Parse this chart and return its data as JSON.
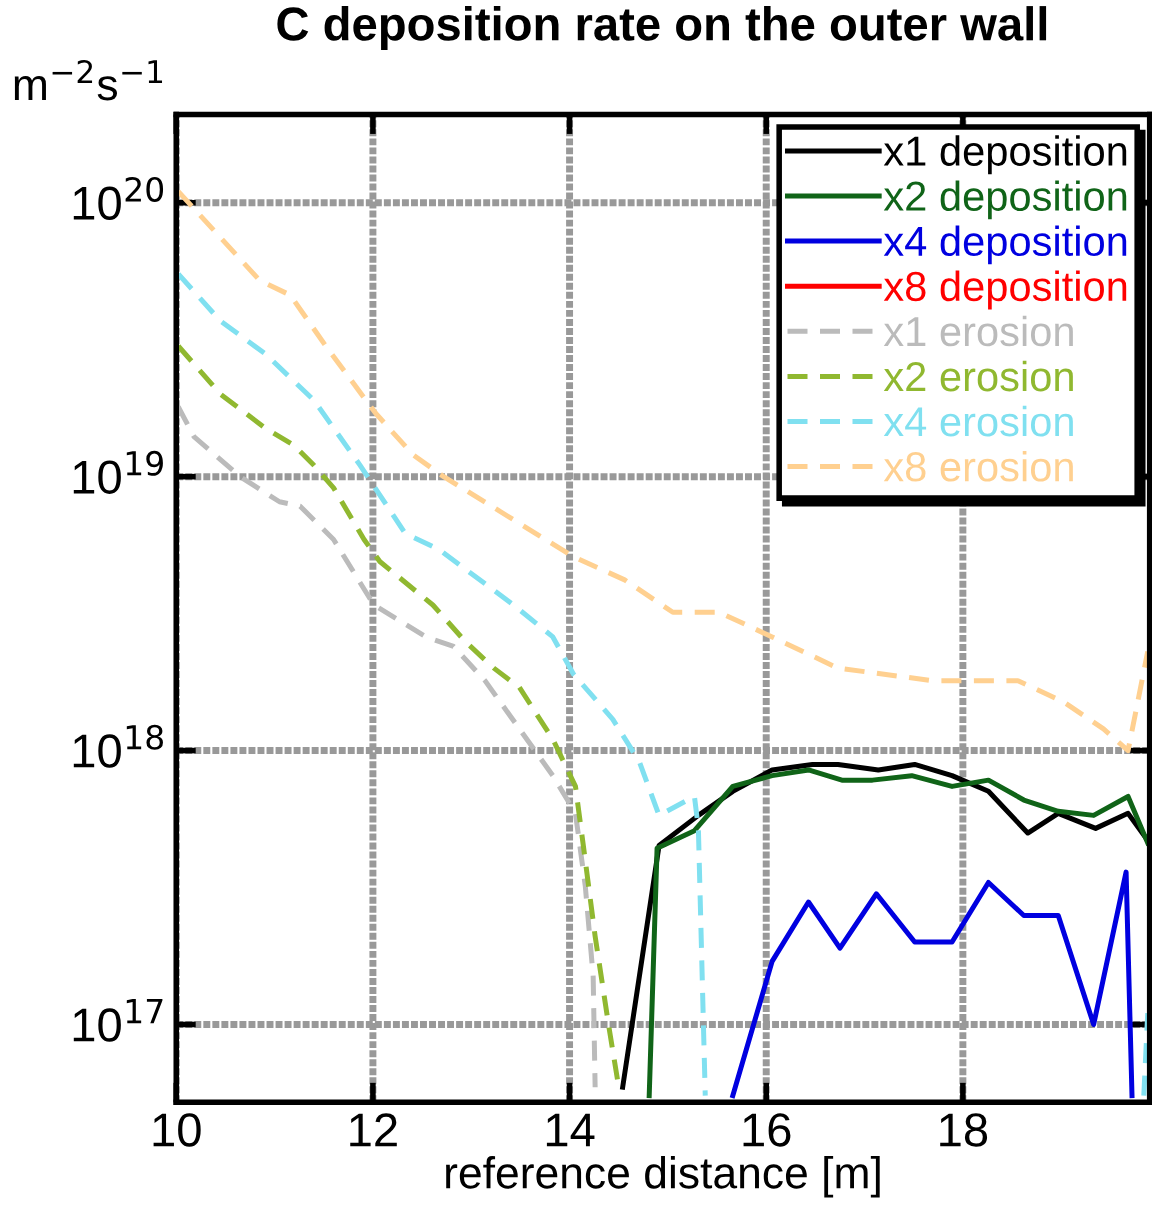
{
  "chart_data": {
    "type": "line",
    "title": "C deposition rate on the outer wall",
    "ylabel": "m$^{−2}$s$^{−1}$",
    "xlabel": "reference distance [m]",
    "log": "y",
    "grid": true,
    "legend": "top right",
    "xlim": [
      10,
      19.9
    ],
    "xticks": [
      10,
      12,
      14,
      16,
      18
    ],
    "ylim": [
      5.2e+16,
      2.1e+20
    ],
    "yticks": [
      {
        "value": 1e+17,
        "label": "10$^{17}$"
      },
      {
        "value": 1e+18,
        "label": "10$^{18}$"
      },
      {
        "value": 1e+19,
        "label": "10$^{19}$"
      },
      {
        "value": 1e+20,
        "label": "10$^{20}$"
      }
    ],
    "series": [
      {
        "name": "x1 deposition",
        "color": "#000000",
        "line_style": "solid",
        "x": [
          14.54,
          14.91,
          15.31,
          15.66,
          16.06,
          16.47,
          16.73,
          17.14,
          17.51,
          17.89,
          18.26,
          18.66,
          18.97,
          19.35,
          19.68,
          19.88
        ],
        "values": [
          5.9e+16,
          4.5e+17,
          5.8e+17,
          7.1e+17,
          8.5e+17,
          8.9e+17,
          8.9e+17,
          8.5e+17,
          8.9e+17,
          8.1e+17,
          7.1e+17,
          5e+17,
          5.9e+17,
          5.2e+17,
          5.9e+17,
          4.7e+17
        ]
      },
      {
        "name": "x2 deposition",
        "color": "#106418",
        "line_style": "solid",
        "x": [
          14.81,
          14.89,
          15.27,
          15.66,
          16.06,
          16.43,
          16.77,
          17.08,
          17.48,
          17.89,
          18.26,
          18.62,
          18.97,
          19.33,
          19.68,
          19.88
        ],
        "values": [
          5.5e+16,
          4.4e+17,
          5.1e+17,
          7.4e+17,
          8.1e+17,
          8.5e+17,
          7.8e+17,
          7.8e+17,
          8.1e+17,
          7.4e+17,
          7.8e+17,
          6.6e+17,
          6e+17,
          5.8e+17,
          6.8e+17,
          4.6e+17
        ]
      },
      {
        "name": "x4 deposition",
        "color": "#0000e0",
        "line_style": "solid",
        "x": [
          15.66,
          16.06,
          16.43,
          16.75,
          17.12,
          17.51,
          17.89,
          18.26,
          18.62,
          18.97,
          19.33,
          19.66,
          19.72
        ],
        "values": [
          5.5e+16,
          1.7e+17,
          2.8e+17,
          1.9e+17,
          3e+17,
          2e+17,
          2e+17,
          3.3e+17,
          2.5e+17,
          2.5e+17,
          1e+17,
          3.6e+17,
          5.5e+16
        ]
      },
      {
        "name": "x8 deposition",
        "color": "#ff0000",
        "line_style": "solid"
      },
      {
        "name": "x1 erosion",
        "color": "#bbbbbb",
        "line_style": "dashed",
        "x": [
          10.02,
          10.18,
          10.65,
          11.05,
          11.26,
          11.6,
          12.01,
          12.54,
          12.82,
          13.14,
          13.49,
          13.83,
          14.06,
          14.16,
          14.24,
          14.26
        ],
        "values": [
          1.8e+19,
          1.4e+19,
          1e+19,
          8.1e+18,
          7.8e+18,
          5.9e+18,
          3.4e+18,
          2.6e+18,
          2.4e+18,
          1.8e+18,
          1.2e+18,
          8.1e+17,
          5.9e+17,
          3.2e+17,
          1.5e+17,
          5.9e+16
        ]
      },
      {
        "name": "x2 erosion",
        "color": "#90b830",
        "line_style": "dashed",
        "x": [
          10.02,
          10.45,
          10.91,
          11.2,
          11.4,
          11.6,
          11.91,
          12.07,
          12.61,
          12.94,
          13.23,
          13.49,
          13.83,
          14.06,
          14.14,
          14.26,
          14.4,
          14.5
        ],
        "values": [
          3e+19,
          2e+19,
          1.5e+19,
          1.3e+19,
          1.1e+19,
          9.1e+18,
          5.9e+18,
          4.9e+18,
          3.4e+18,
          2.5e+18,
          2e+18,
          1.7e+18,
          1.1e+18,
          7.4e+17,
          4.5e+17,
          2.1e+17,
          9.8e+16,
          5.9e+16
        ]
      },
      {
        "name": "x4 erosion",
        "color": "#80e0f0",
        "line_style": "dashed",
        "x": [
          10.02,
          10.45,
          10.91,
          11.4,
          11.87,
          12.33,
          12.68,
          13.43,
          13.83,
          14.04,
          14.44,
          14.71,
          14.91,
          15.27,
          15.31,
          15.38,
          17.5,
          19.84,
          19.88
        ],
        "values": [
          5.5e+19,
          3.7e+19,
          2.8e+19,
          1.9e+19,
          1.1e+19,
          6.2e+18,
          5.4e+18,
          3.4e+18,
          2.6e+18,
          1.9e+18,
          1.3e+18,
          9.1e+17,
          5.8e+17,
          6.8e+17,
          5.2e+17,
          5.5e+16,
          null,
          5.5e+16,
          1.1e+17
        ]
      },
      {
        "name": "x8 erosion",
        "color": "#ffd090",
        "line_style": "dashed",
        "x": [
          10.02,
          10.85,
          11.16,
          11.52,
          12.03,
          12.41,
          12.72,
          14.04,
          14.56,
          15.05,
          15.52,
          16.06,
          16.73,
          17.69,
          18.56,
          19.03,
          19.43,
          19.68,
          19.88
        ],
        "values": [
          1.1e+20,
          5.2e+19,
          4.6e+19,
          3e+19,
          1.7e+19,
          1.2e+19,
          1e+19,
          5.1e+18,
          4.2e+18,
          3.2e+18,
          3.2e+18,
          2.6e+18,
          2e+18,
          1.8e+18,
          1.8e+18,
          1.5e+18,
          1.2e+18,
          1e+18,
          2.3e+18
        ]
      }
    ]
  }
}
